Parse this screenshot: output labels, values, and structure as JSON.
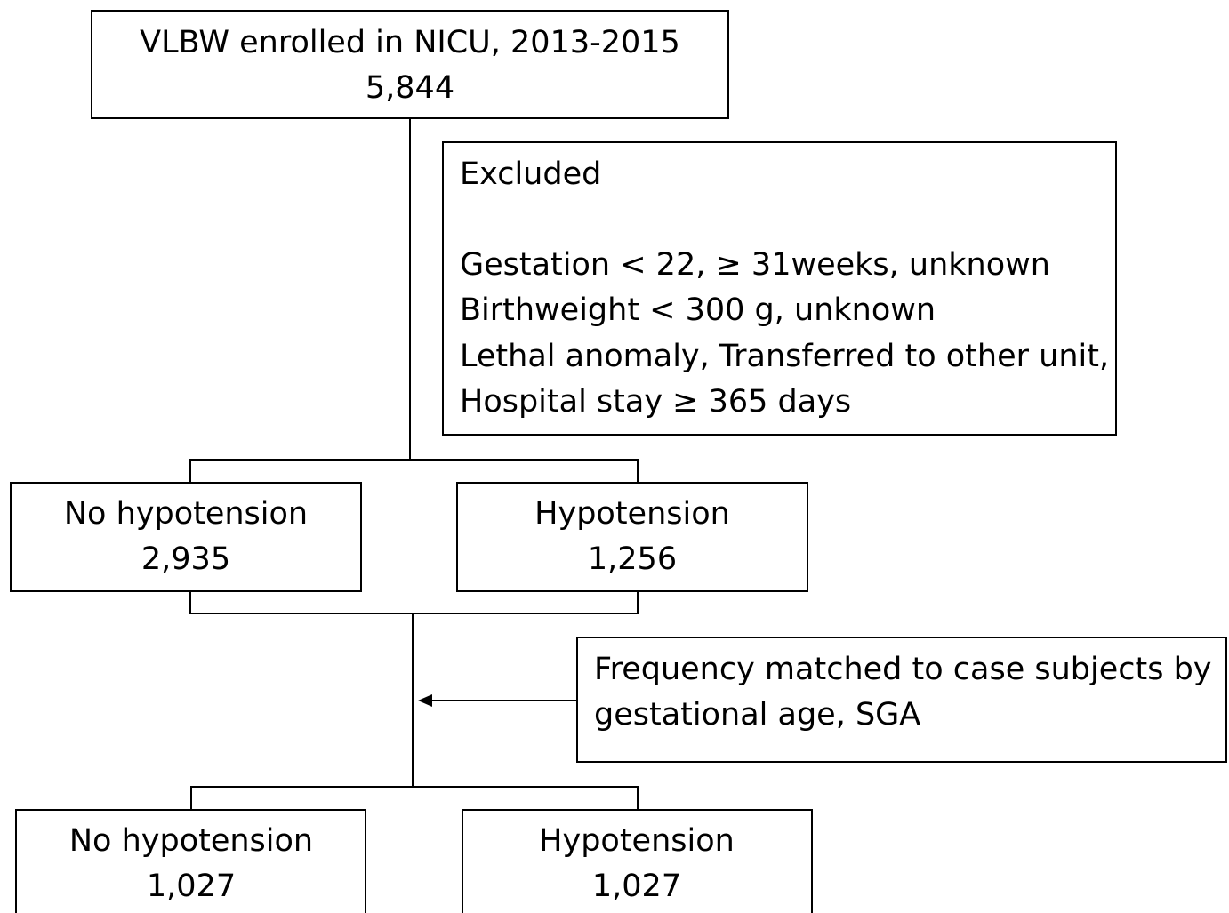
{
  "nodes": [
    {
      "label": "VLBW enrolled in NICU, 2013-2015",
      "count": "5,844"
    },
    {
      "label": "No hypotension",
      "count": "2,935"
    },
    {
      "label": "Hypotension",
      "count": "1,256"
    },
    {
      "label": "No hypotension",
      "count": "1,027"
    },
    {
      "label": "Hypotension",
      "count": "1,027"
    }
  ],
  "exclusion": {
    "title": "Excluded",
    "lines": [
      "Gestation < 22, ≥ 31weeks, unknown",
      "Birthweight < 300 g, unknown",
      "Lethal anomaly, Transferred to other unit,",
      "Hospital stay ≥ 365 days"
    ]
  },
  "matching": {
    "lines": [
      "Frequency matched to case subjects by",
      "gestational age, SGA"
    ]
  }
}
